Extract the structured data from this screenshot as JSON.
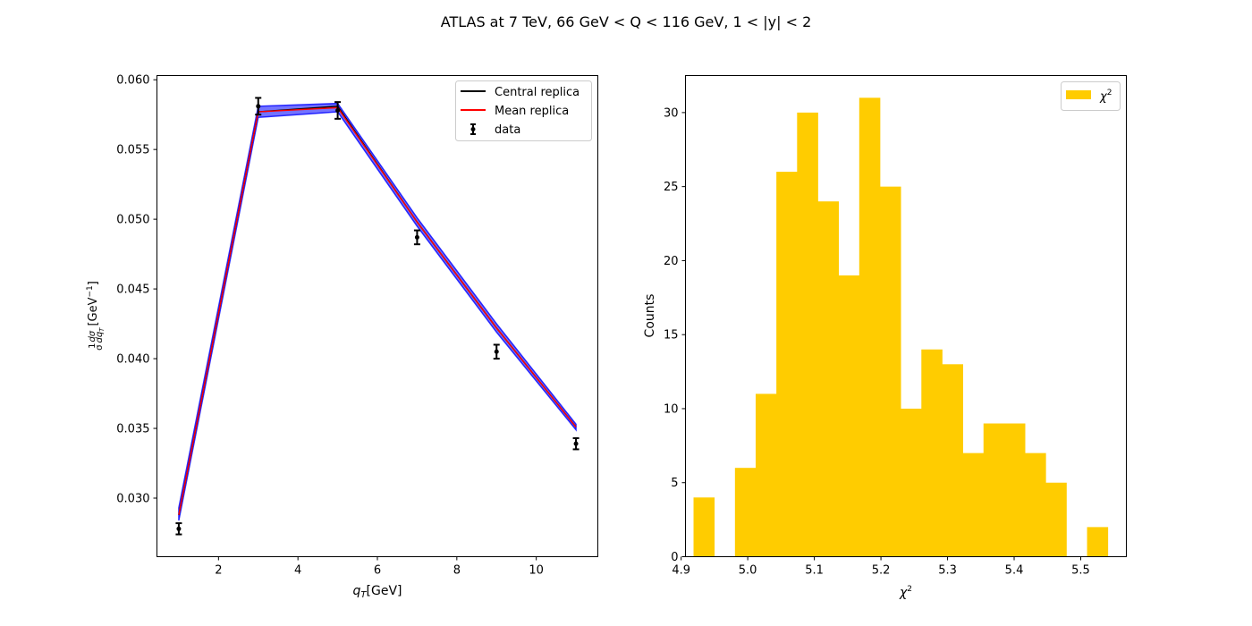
{
  "figure": {
    "title": "ATLAS at 7 TeV, 66 GeV < Q < 116 GeV, 1 < |y| < 2"
  },
  "chart_data": [
    {
      "type": "line",
      "xlabel": "q_T [GeV]",
      "ylabel": "1/σ dσ/dq_T [GeV^-1]",
      "xlim": [
        0.45,
        11.55
      ],
      "ylim": [
        0.0258,
        0.0603
      ],
      "x_ticks": [
        2,
        4,
        6,
        8,
        10
      ],
      "y_ticks": [
        0.03,
        0.035,
        0.04,
        0.045,
        0.05,
        0.055,
        0.06
      ],
      "x_tick_labels": [
        "2",
        "4",
        "6",
        "8",
        "10"
      ],
      "y_tick_labels": [
        "0.030",
        "0.035",
        "0.040",
        "0.045",
        "0.050",
        "0.055",
        "0.060"
      ],
      "grid": false,
      "legend_position": "top-right",
      "legend": [
        "Central replica",
        "Mean replica",
        "data"
      ],
      "x": [
        1,
        3,
        5,
        7,
        9,
        11
      ],
      "series": [
        {
          "name": "Central replica",
          "color": "#000000",
          "values": [
            0.0288,
            0.0577,
            0.0581,
            0.0498,
            0.0422,
            0.0351
          ]
        },
        {
          "name": "Mean replica",
          "color": "#ff0000",
          "values": [
            0.0288,
            0.0577,
            0.058,
            0.0498,
            0.0422,
            0.0351
          ]
        }
      ],
      "replica_band": {
        "color": "#0000ff",
        "lower": [
          0.0284,
          0.0573,
          0.0577,
          0.0495,
          0.0419,
          0.0349
        ],
        "upper": [
          0.0293,
          0.0581,
          0.0583,
          0.0501,
          0.0425,
          0.0353
        ]
      },
      "data_points": {
        "name": "data",
        "color": "#000000",
        "y": [
          0.0278,
          0.0581,
          0.0578,
          0.0487,
          0.0405,
          0.0339
        ],
        "err": [
          0.0004,
          0.0006,
          0.0006,
          0.0005,
          0.0005,
          0.0004
        ]
      }
    },
    {
      "type": "bar",
      "subtype": "histogram",
      "xlabel": "χ²",
      "ylabel": "Counts",
      "xlim": [
        4.9065,
        5.5685
      ],
      "ylim": [
        0,
        32.5
      ],
      "x_ticks": [
        4.9,
        5.0,
        5.1,
        5.2,
        5.3,
        5.4,
        5.5
      ],
      "y_ticks": [
        0,
        5,
        10,
        15,
        20,
        25,
        30
      ],
      "x_tick_labels": [
        "4.9",
        "5.0",
        "5.1",
        "5.2",
        "5.3",
        "5.4",
        "5.5"
      ],
      "y_tick_labels": [
        "0",
        "5",
        "10",
        "15",
        "20",
        "25",
        "30"
      ],
      "grid": false,
      "legend_position": "top-right",
      "legend": [
        "χ²"
      ],
      "color": "#ffcc00",
      "bin_edges": [
        4.9186,
        4.9497,
        4.9808,
        5.0119,
        5.043,
        5.0741,
        5.1052,
        5.1363,
        5.1674,
        5.1985,
        5.2296,
        5.2607,
        5.2918,
        5.3229,
        5.354,
        5.3851,
        5.4162,
        5.4473,
        5.4784,
        5.5095,
        5.5406
      ],
      "values": [
        4,
        0,
        6,
        11,
        26,
        30,
        24,
        19,
        31,
        25,
        10,
        14,
        13,
        7,
        9,
        9,
        7,
        5,
        0,
        2
      ]
    }
  ]
}
